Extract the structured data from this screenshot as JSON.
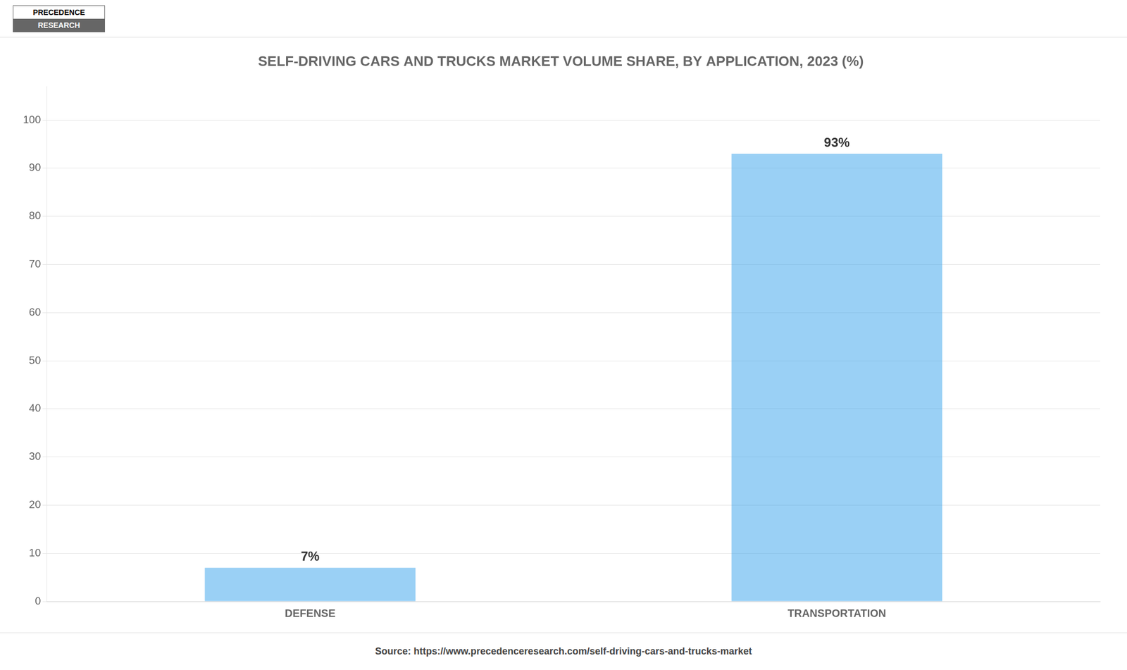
{
  "chart_data": {
    "type": "bar",
    "title": "SELF-DRIVING CARS AND TRUCKS MARKET VOLUME SHARE, BY APPLICATION, 2023 (%)",
    "categories": [
      "DEFENSE",
      "TRANSPORTATION"
    ],
    "values": [
      7,
      93
    ],
    "value_labels": [
      "7%",
      "93%"
    ],
    "data_labels": true,
    "ylim": [
      0,
      107
    ],
    "yticks": [
      0,
      10,
      20,
      30,
      40,
      50,
      60,
      70,
      80,
      90,
      100
    ],
    "grid": true,
    "annotations": [
      "PRECEDENCE",
      "RESEARCH",
      "Source: https://www.precedenceresearch.com/self-driving-cars-and-trucks-market"
    ]
  }
}
